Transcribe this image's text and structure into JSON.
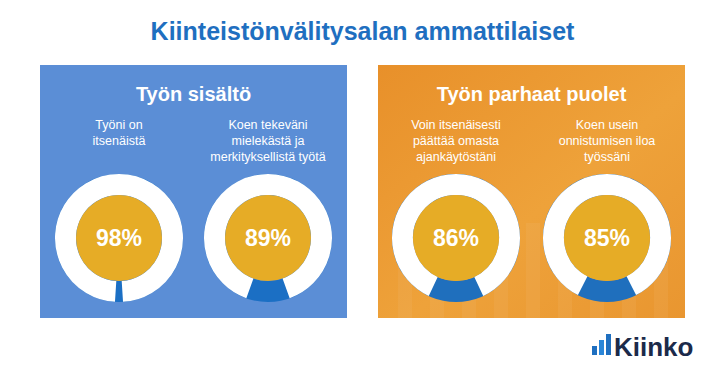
{
  "header": {
    "title": "Kiinteistönvälitysalan ammattilaiset"
  },
  "chart_data": [
    {
      "type": "donut",
      "title": "Työn sisältö",
      "categories": [
        "Työni on\nitsenäistä",
        "Koen tekeväni\nmielekästä ja\nmerkityksellistä työtä"
      ],
      "values": [
        98,
        89
      ],
      "value_labels": [
        "98%",
        "89%"
      ],
      "ylim": [
        0,
        100
      ],
      "color": "#ffffff",
      "data_labels": true
    },
    {
      "type": "donut",
      "title": "Työn parhaat puolet",
      "categories": [
        "Voin itsenäisesti\npäättää omasta\najankäytöstäni",
        "Koen usein\nonnistumisen iloa\ntyössäni"
      ],
      "values": [
        86,
        85
      ],
      "value_labels": [
        "86%",
        "85%"
      ],
      "ylim": [
        0,
        100
      ],
      "color": "#ffffff",
      "data_labels": true
    }
  ],
  "footer": {
    "logo": "Kiinko"
  }
}
